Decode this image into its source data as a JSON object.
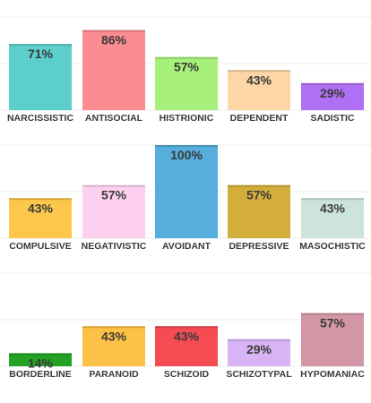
{
  "chart_data": [
    {
      "type": "bar",
      "categories": [
        "NARCISSISTIC",
        "ANTISOCIAL",
        "HISTRIONIC",
        "DEPENDENT",
        "SADISTIC"
      ],
      "values": [
        71,
        86,
        57,
        43,
        29
      ],
      "value_labels": [
        "71%",
        "86%",
        "57%",
        "43%",
        "29%"
      ],
      "colors": [
        "#5ccfcc",
        "#fb8c8f",
        "#a8f07c",
        "#fdd6a6",
        "#b070f4"
      ],
      "ylim": [
        0,
        100
      ]
    },
    {
      "type": "bar",
      "categories": [
        "COMPULSIVE",
        "NEGATIVISTIC",
        "AVOIDANT",
        "DEPRESSIVE",
        "MASOCHISTIC"
      ],
      "values": [
        43,
        57,
        100,
        57,
        43
      ],
      "value_labels": [
        "43%",
        "57%",
        "100%",
        "57%",
        "43%"
      ],
      "colors": [
        "#fcc74a",
        "#fdd0ef",
        "#55aedb",
        "#d4ae3c",
        "#cde4db"
      ],
      "ylim": [
        0,
        100
      ]
    },
    {
      "type": "bar",
      "categories": [
        "BORDERLINE",
        "PARANOID",
        "SCHIZOID",
        "SCHIZOTYPAL",
        "HYPOMANIAC"
      ],
      "values": [
        14,
        43,
        43,
        29,
        57
      ],
      "value_labels": [
        "14%",
        "43%",
        "43%",
        "29%",
        "57%"
      ],
      "colors": [
        "#23a225",
        "#fdc146",
        "#f54c54",
        "#d8b4f6",
        "#d296a6"
      ],
      "ylim": [
        0,
        100
      ]
    }
  ]
}
